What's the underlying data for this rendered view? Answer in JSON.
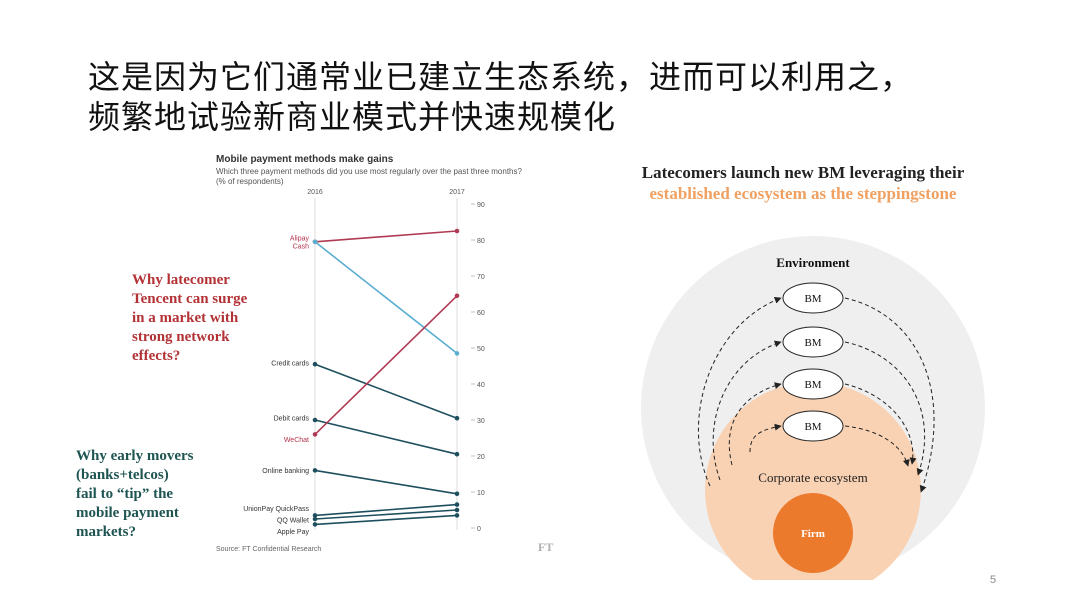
{
  "slide": {
    "title_line1": "这是因为它们通常业已建立生态系统，进而可以利用之，",
    "title_line2": "频繁地试验新商业模式并快速规模化",
    "page_number": "5"
  },
  "notes": {
    "red_lines": [
      "Why latecomer",
      "Tencent can surge",
      "in a market with",
      "strong network",
      "effects?"
    ],
    "green_lines": [
      "Why early movers",
      "(banks+telcos)",
      "fail to “tip” the",
      "mobile payment",
      "markets?"
    ],
    "ft_mark": "FT"
  },
  "chart_data": {
    "type": "line",
    "title": "Mobile payment methods make gains",
    "subtitle_lines": [
      "Which three payment methods did you use most regularly over the past three months?",
      "(% of respondents)"
    ],
    "x": [
      "2016",
      "2017"
    ],
    "ylim": [
      0,
      90
    ],
    "yticks": [
      0,
      10,
      20,
      30,
      40,
      50,
      60,
      70,
      80,
      90
    ],
    "source": "Source: FT Confidential Research",
    "colors": {
      "wechat": "#b03a54",
      "alipay": "#b03a54",
      "cash": "#5aaed0",
      "other": "#1e4f5e",
      "highlight_label": "#b3344f"
    },
    "series": [
      {
        "name": "Alipay",
        "values": [
          79.5,
          82.5
        ],
        "color_key": "alipay"
      },
      {
        "name": "Cash",
        "values": [
          79.5,
          48.5
        ],
        "color_key": "cash"
      },
      {
        "name": "Credit cards",
        "values": [
          45.5,
          30.5
        ],
        "color_key": "other"
      },
      {
        "name": "Debit cards",
        "values": [
          30.0,
          20.5
        ],
        "color_key": "other"
      },
      {
        "name": "WeChat",
        "values": [
          26.0,
          64.5
        ],
        "color_key": "wechat"
      },
      {
        "name": "Online banking",
        "values": [
          16.0,
          9.5
        ],
        "color_key": "other"
      },
      {
        "name": "UnionPay QuickPass",
        "values": [
          3.5,
          6.5
        ],
        "color_key": "other"
      },
      {
        "name": "QQ Wallet",
        "values": [
          2.5,
          5.0
        ],
        "color_key": "other"
      },
      {
        "name": "Apple Pay",
        "values": [
          1.0,
          3.5
        ],
        "color_key": "other"
      }
    ]
  },
  "latecomers": {
    "line1": "Latecomers launch new BM leveraging their",
    "line2": "established ecosystem as the steppingstone"
  },
  "diagram": {
    "environment_label": "Environment",
    "bm_label": "BM",
    "ecosystem_label": "Corporate ecosystem",
    "firm_label": "Firm",
    "colors": {
      "environment": "#efefef",
      "ecosystem": "#f9d2b4",
      "firm": "#ec7a2c"
    }
  }
}
